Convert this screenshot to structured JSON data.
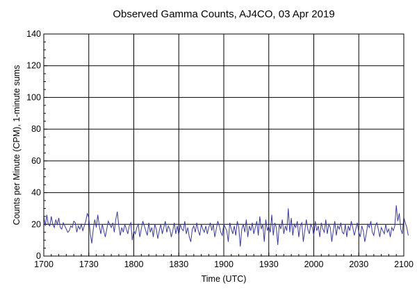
{
  "chart_data": {
    "type": "line",
    "title": "Observed Gamma Counts, AJ4CO, 03 Apr 2019",
    "xlabel": "Time (UTC)",
    "ylabel": "Counts per Minute (CPM), 1-minute sums",
    "x_ticks": [
      "1700",
      "1730",
      "1800",
      "1830",
      "1900",
      "1930",
      "2000",
      "2030",
      "2100"
    ],
    "y_ticks": [
      "0",
      "20",
      "40",
      "60",
      "80",
      "100",
      "120",
      "140"
    ],
    "xlim_minutes": [
      0,
      240
    ],
    "ylim": [
      0,
      140
    ],
    "grid": true,
    "line_color": "#3a3a9a",
    "series": [
      {
        "x_start_minute": 0,
        "x_step_minutes": 1,
        "values": [
          25,
          19,
          26,
          20,
          19,
          25,
          20,
          18,
          23,
          20,
          24,
          18,
          17,
          21,
          19,
          17,
          15,
          16,
          19,
          18,
          22,
          21,
          15,
          19,
          17,
          20,
          16,
          19,
          22,
          27,
          24,
          14,
          8,
          17,
          23,
          18,
          26,
          19,
          14,
          20,
          16,
          12,
          17,
          22,
          20,
          18,
          21,
          15,
          23,
          28,
          19,
          13,
          18,
          15,
          20,
          17,
          14,
          19,
          21,
          10,
          16,
          14,
          18,
          20,
          12,
          17,
          22,
          19,
          16,
          13,
          21,
          15,
          18,
          12,
          20,
          17,
          11,
          16,
          20,
          14,
          18,
          22,
          15,
          19,
          17,
          12,
          16,
          21,
          14,
          19,
          13,
          20,
          17,
          16,
          22,
          14,
          18,
          12,
          9,
          17,
          19,
          15,
          21,
          16,
          13,
          20,
          17,
          15,
          19,
          14,
          18,
          21,
          16,
          20,
          12,
          17,
          22,
          19,
          15,
          13,
          20,
          18,
          16,
          9,
          21,
          17,
          14,
          19,
          13,
          22,
          18,
          6,
          17,
          20,
          15,
          23,
          12,
          19,
          16,
          21,
          14,
          18,
          22,
          13,
          25,
          17,
          20,
          9,
          23,
          16,
          19,
          15,
          26,
          13,
          21,
          18,
          7,
          20,
          17,
          23,
          14,
          19,
          16,
          30,
          15,
          24,
          13,
          20,
          18,
          22,
          12,
          19,
          21,
          9,
          16,
          23,
          17,
          14,
          20,
          18,
          13,
          22,
          16,
          19,
          12,
          21,
          17,
          15,
          23,
          14,
          20,
          18,
          9,
          16,
          22,
          13,
          19,
          17,
          21,
          15,
          14,
          20,
          12,
          19,
          16,
          22,
          18,
          13,
          17,
          21,
          15,
          12,
          19,
          16,
          9,
          14,
          20,
          18,
          22,
          15,
          13,
          19,
          21,
          17,
          12,
          18,
          16,
          14,
          20,
          15,
          17,
          12,
          18,
          16,
          19,
          32,
          22,
          27,
          17,
          14,
          24,
          21,
          18,
          13
        ]
      }
    ]
  }
}
